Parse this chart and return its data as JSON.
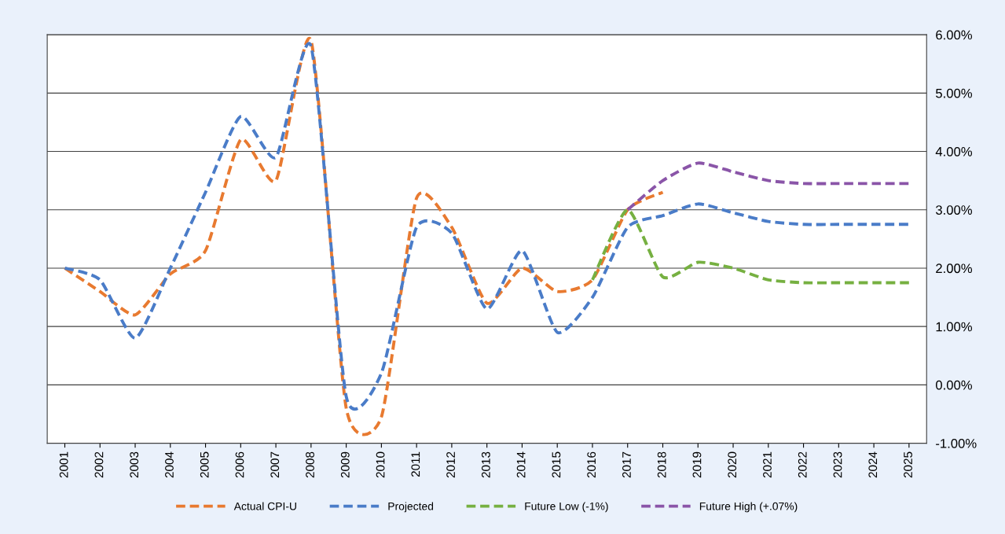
{
  "chart_data": {
    "type": "line",
    "categories": [
      "2001",
      "2002",
      "2003",
      "2004",
      "2005",
      "2006",
      "2007",
      "2008",
      "2009",
      "2010",
      "2011",
      "2012",
      "2013",
      "2014",
      "2015",
      "2016",
      "2017",
      "2018",
      "2019",
      "2020",
      "2021",
      "2022",
      "2023",
      "2024",
      "2025"
    ],
    "series": [
      {
        "name": "Actual CPI-U",
        "color": "#e87a30",
        "values": [
          2.0,
          1.6,
          1.2,
          1.9,
          2.3,
          4.2,
          3.5,
          5.9,
          -0.4,
          -0.55,
          3.2,
          2.7,
          1.4,
          2.0,
          1.6,
          1.8,
          3.0,
          3.3,
          null,
          null,
          null,
          null,
          null,
          null,
          null
        ]
      },
      {
        "name": "Projected",
        "color": "#4a7cc8",
        "values": [
          2.0,
          1.8,
          0.8,
          2.0,
          3.3,
          4.6,
          3.9,
          5.8,
          -0.2,
          0.2,
          2.7,
          2.6,
          1.3,
          2.3,
          0.9,
          1.5,
          2.7,
          2.9,
          3.1,
          2.95,
          2.8,
          2.75,
          2.75,
          2.75,
          2.75
        ]
      },
      {
        "name": "Future Low (-1%)",
        "color": "#76b041",
        "values": [
          null,
          null,
          null,
          null,
          null,
          null,
          null,
          null,
          null,
          null,
          null,
          null,
          null,
          null,
          null,
          1.8,
          3.0,
          1.85,
          2.1,
          2.0,
          1.8,
          1.75,
          1.75,
          1.75,
          1.75
        ]
      },
      {
        "name": "Future High (+.07%)",
        "color": "#8a55a8",
        "values": [
          null,
          null,
          null,
          null,
          null,
          null,
          null,
          null,
          null,
          null,
          null,
          null,
          null,
          null,
          null,
          null,
          3.0,
          3.5,
          3.8,
          3.65,
          3.5,
          3.45,
          3.45,
          3.45,
          3.45
        ]
      }
    ],
    "ylim": [
      -1,
      6
    ],
    "yticks": [
      {
        "value": -1,
        "label": "-1.00%"
      },
      {
        "value": 0,
        "label": "0.00%"
      },
      {
        "value": 1,
        "label": "1.00%"
      },
      {
        "value": 2,
        "label": "2.00%"
      },
      {
        "value": 3,
        "label": "3.00%"
      },
      {
        "value": 4,
        "label": "4.00%"
      },
      {
        "value": 5,
        "label": "5.00%"
      },
      {
        "value": 6,
        "label": "6.00%"
      }
    ],
    "grid": "y",
    "legend": "bottom",
    "line_style": "dashed",
    "marker": "none"
  }
}
